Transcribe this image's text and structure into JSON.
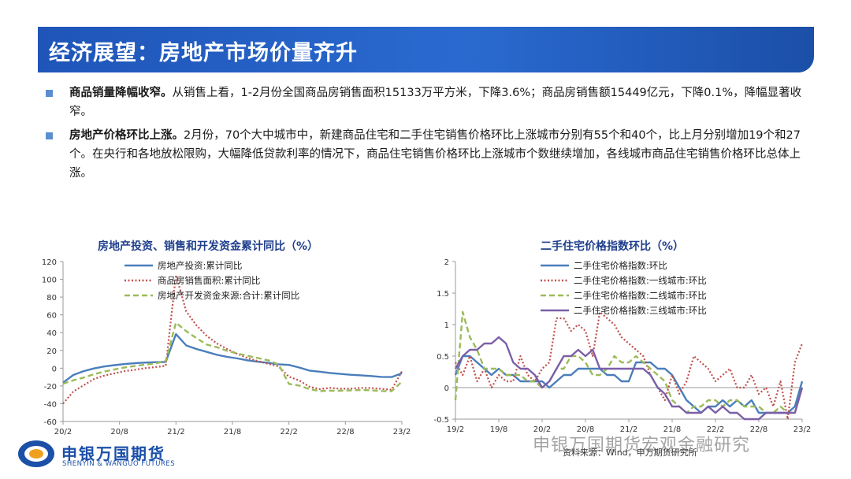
{
  "header": {
    "title": "经济展望：房地产市场价量齐升"
  },
  "bullets": [
    {
      "bold": "商品销量降幅收窄。",
      "text": "从销售上看，1-2月份全国商品房销售面积15133万平方米，下降3.6%；商品房销售额15449亿元，下降0.1%，降幅显著收窄。"
    },
    {
      "bold": "房地产价格环比上涨。",
      "text": "2月份，70个大中城市中，新建商品住宅和二手住宅销售价格环比上涨城市分别有55个和40个，比上月分别增加19个和27个。在央行和各地放松限购，大幅降低贷款利率的情况下，商品住宅销售价格环比上涨城市个数继续增加，各线城市商品住宅销售价格环比总体上涨。"
    }
  ],
  "chart_data": [
    {
      "type": "line",
      "title": "房地产投资、销售和开发资金累计同比（%）",
      "ylim": [
        -60,
        120
      ],
      "yticks": [
        -60,
        -40,
        -20,
        0,
        20,
        40,
        60,
        80,
        100,
        120
      ],
      "xticks": [
        "20/2",
        "20/8",
        "21/2",
        "21/8",
        "22/2",
        "22/8",
        "23/2"
      ],
      "x": [
        "20/2",
        "20/3",
        "20/4",
        "20/5",
        "20/6",
        "20/7",
        "20/8",
        "20/9",
        "20/10",
        "20/11",
        "20/12",
        "21/2",
        "21/3",
        "21/4",
        "21/5",
        "21/6",
        "21/7",
        "21/8",
        "21/9",
        "21/10",
        "21/11",
        "21/12",
        "22/2",
        "22/3",
        "22/4",
        "22/5",
        "22/6",
        "22/7",
        "22/8",
        "22/9",
        "22/10",
        "22/11",
        "22/12",
        "23/2"
      ],
      "legend": "top-left",
      "series": [
        {
          "name": "房地产投资:累计同比",
          "color": "#4a7ebb",
          "dash": "solid",
          "values": [
            -16.3,
            -7.7,
            -3.3,
            -0.3,
            1.9,
            3.4,
            4.6,
            5.6,
            6.3,
            6.8,
            7.0,
            38.3,
            25.6,
            21.6,
            18.3,
            15.0,
            12.7,
            10.9,
            8.8,
            7.2,
            6.0,
            4.4,
            3.7,
            0.7,
            -2.7,
            -4.0,
            -5.4,
            -6.4,
            -7.4,
            -8.0,
            -8.8,
            -9.8,
            -10.0,
            -5.7
          ]
        },
        {
          "name": "商品房销售面积:累计同比",
          "color": "#c0504d",
          "dash": "dot",
          "values": [
            -39.9,
            -26.3,
            -19.3,
            -12.3,
            -8.4,
            -5.8,
            -3.3,
            -1.8,
            0.0,
            1.3,
            2.6,
            104.9,
            63.8,
            48.1,
            36.3,
            27.7,
            21.5,
            15.9,
            11.3,
            7.8,
            4.8,
            1.9,
            -9.6,
            -13.8,
            -20.9,
            -23.6,
            -22.2,
            -23.1,
            -23.0,
            -22.2,
            -22.3,
            -23.3,
            -24.3,
            -3.6
          ]
        },
        {
          "name": "房地产开发资金来源:合计:累计同比",
          "color": "#9bbb59",
          "dash": "dash",
          "values": [
            -17.5,
            -13.6,
            -10.6,
            -6.9,
            -3.9,
            -1.4,
            0.8,
            2.4,
            4.0,
            5.3,
            8.1,
            51.2,
            41.6,
            33.8,
            26.5,
            23.5,
            19.4,
            16.4,
            13.9,
            11.4,
            8.8,
            4.2,
            -17.7,
            -19.6,
            -23.6,
            -25.8,
            -25.3,
            -25.4,
            -25.0,
            -24.5,
            -24.9,
            -25.7,
            -25.9,
            -15.2
          ]
        }
      ]
    },
    {
      "type": "line",
      "title": "二手住宅价格指数环比（%）",
      "ylim": [
        -0.5,
        2
      ],
      "yticks": [
        -0.5,
        0,
        0.5,
        1,
        1.5,
        2
      ],
      "xticks": [
        "19/2",
        "19/8",
        "20/2",
        "20/8",
        "21/2",
        "21/8",
        "22/2",
        "22/8",
        "23/2"
      ],
      "legend": "top-left",
      "series": [
        {
          "name": "二手住宅价格指数:环比",
          "color": "#4a7ebb",
          "dash": "solid",
          "values": [
            0.2,
            0.5,
            0.5,
            0.4,
            0.3,
            0.2,
            0.3,
            0.2,
            0.2,
            0.1,
            0.1,
            0.1,
            0.1,
            0.0,
            0.1,
            0.2,
            0.2,
            0.3,
            0.3,
            0.3,
            0.3,
            0.2,
            0.2,
            0.1,
            0.1,
            0.4,
            0.4,
            0.4,
            0.3,
            0.3,
            0.2,
            0.0,
            -0.2,
            -0.3,
            -0.4,
            -0.3,
            -0.3,
            -0.2,
            -0.3,
            -0.2,
            -0.3,
            -0.2,
            -0.4,
            -0.4,
            -0.4,
            -0.4,
            -0.4,
            -0.3,
            0.1
          ]
        },
        {
          "name": "二手住宅价格指数:一线城市:环比",
          "color": "#c0504d",
          "dash": "dot",
          "values": [
            0.4,
            0.2,
            0.5,
            0.1,
            0.3,
            0.0,
            0.2,
            0.1,
            0.1,
            0.5,
            0.2,
            0.1,
            0.3,
            0.4,
            1.1,
            1.1,
            0.9,
            1.0,
            0.9,
            0.5,
            1.2,
            1.1,
            1.0,
            0.8,
            0.7,
            0.6,
            0.5,
            0.2,
            0.0,
            -0.2,
            0.2,
            -0.1,
            0.1,
            0.5,
            0.4,
            0.3,
            0.1,
            0.2,
            0.3,
            0.0,
            0.0,
            0.2,
            -0.1,
            0.0,
            -0.3,
            0.1,
            -0.5,
            0.4,
            0.7
          ]
        },
        {
          "name": "二手住宅价格指数:二线城市:环比",
          "color": "#9bbb59",
          "dash": "dash",
          "values": [
            -0.2,
            1.2,
            0.8,
            0.6,
            0.3,
            0.3,
            0.3,
            0.2,
            0.2,
            0.2,
            0.1,
            0.1,
            0.0,
            0.1,
            0.3,
            0.3,
            0.5,
            0.5,
            0.4,
            0.2,
            0.2,
            0.3,
            0.5,
            0.4,
            0.4,
            0.5,
            0.4,
            0.3,
            0.2,
            0.1,
            -0.2,
            -0.3,
            -0.4,
            -0.3,
            -0.3,
            -0.2,
            -0.2,
            -0.3,
            -0.2,
            -0.2,
            -0.3,
            -0.3,
            -0.3,
            -0.4,
            -0.4,
            -0.3,
            -0.4,
            -0.4,
            0.0
          ]
        },
        {
          "name": "二手住宅价格指数:三线城市:环比",
          "color": "#7b5fa8",
          "dash": "solid",
          "values": [
            0.3,
            0.5,
            0.6,
            0.6,
            0.7,
            0.7,
            0.8,
            0.7,
            0.4,
            0.3,
            0.3,
            0.2,
            0.0,
            0.1,
            0.3,
            0.5,
            0.5,
            0.6,
            0.5,
            0.6,
            0.3,
            0.3,
            0.3,
            0.3,
            0.3,
            0.3,
            0.3,
            0.2,
            0.0,
            -0.1,
            -0.3,
            -0.3,
            -0.4,
            -0.4,
            -0.4,
            -0.3,
            -0.4,
            -0.3,
            -0.4,
            -0.4,
            -0.5,
            -0.5,
            -0.5,
            -0.4,
            -0.4,
            -0.4,
            -0.4,
            -0.4,
            0.0
          ]
        }
      ]
    }
  ],
  "footer": {
    "logo_name": "申银万国期货",
    "logo_sub": "SHENYIN & WANGUO FUTURES",
    "source": "资料来源：Wind，申万期货研究所",
    "watermark": "申银万国期货宏观金融研究"
  }
}
